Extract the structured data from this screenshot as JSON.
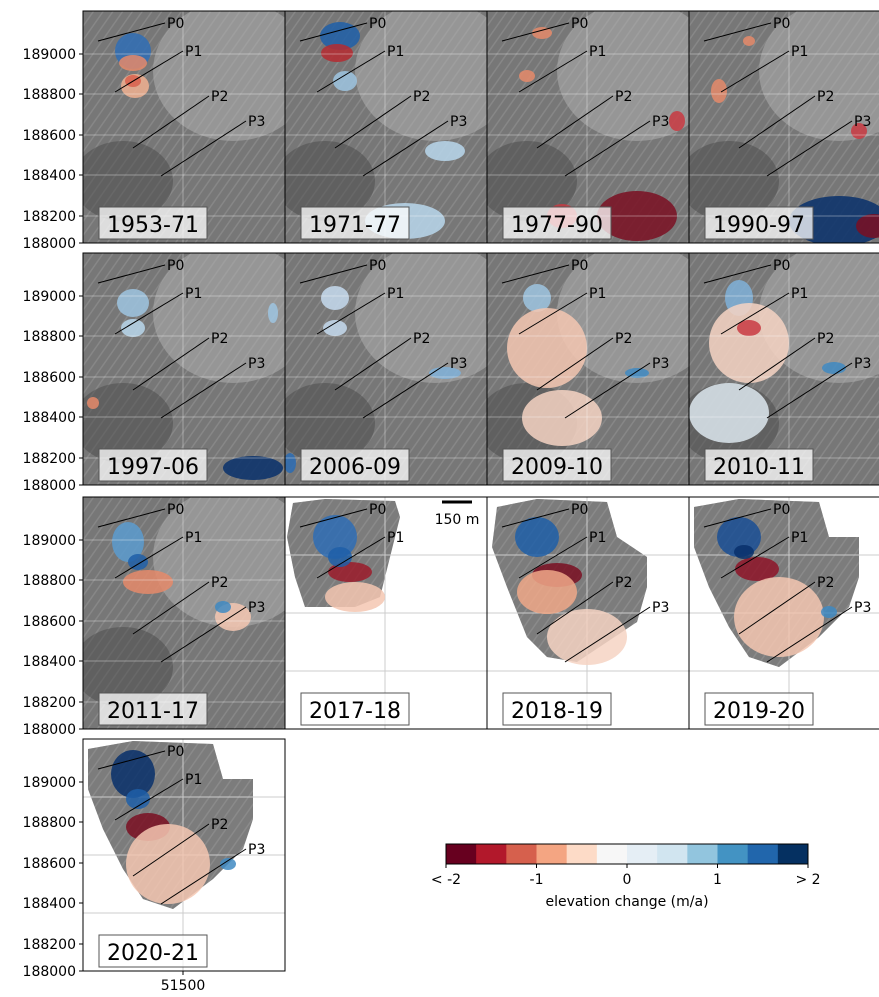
{
  "panels": [
    {
      "label": "1953-71",
      "style": "full",
      "blobs": [
        [
          50,
          40,
          18,
          18,
          "#2f6db5"
        ],
        [
          50,
          52,
          14,
          8,
          "#e58a6a"
        ],
        [
          52,
          75,
          14,
          12,
          "#f0b090"
        ],
        [
          50,
          70,
          8,
          6,
          "#d9604c"
        ]
      ]
    },
    {
      "label": "1971-77",
      "style": "full",
      "blobs": [
        [
          55,
          25,
          20,
          14,
          "#1f5fa8"
        ],
        [
          52,
          42,
          16,
          9,
          "#b52a30"
        ],
        [
          60,
          70,
          12,
          10,
          "#9dc4e0"
        ],
        [
          120,
          210,
          40,
          18,
          "#b9d7ec"
        ],
        [
          160,
          140,
          20,
          10,
          "#b9d7ec"
        ]
      ]
    },
    {
      "label": "1977-90",
      "style": "full",
      "blobs": [
        [
          55,
          22,
          10,
          6,
          "#e58a6a"
        ],
        [
          40,
          65,
          8,
          6,
          "#e58a6a"
        ],
        [
          150,
          205,
          40,
          25,
          "#7a0f22"
        ],
        [
          75,
          205,
          15,
          12,
          "#c93a42"
        ],
        [
          190,
          110,
          8,
          10,
          "#c93a42"
        ]
      ]
    },
    {
      "label": "1990-97",
      "style": "full",
      "blobs": [
        [
          150,
          210,
          50,
          25,
          "#08306b"
        ],
        [
          185,
          215,
          18,
          12,
          "#7a0f22"
        ],
        [
          30,
          80,
          8,
          12,
          "#e58a6a"
        ],
        [
          170,
          120,
          8,
          8,
          "#c93a42"
        ],
        [
          60,
          30,
          6,
          5,
          "#e58a6a"
        ]
      ]
    },
    {
      "label": "1997-06",
      "style": "full",
      "blobs": [
        [
          50,
          50,
          16,
          14,
          "#9dc4e0"
        ],
        [
          50,
          75,
          12,
          9,
          "#b9d7ec"
        ],
        [
          170,
          215,
          30,
          12,
          "#08306b"
        ],
        [
          10,
          150,
          6,
          6,
          "#e58a6a"
        ],
        [
          190,
          60,
          5,
          10,
          "#9dc4e0"
        ]
      ]
    },
    {
      "label": "2006-09",
      "style": "full",
      "blobs": [
        [
          50,
          45,
          14,
          12,
          "#c6dbef"
        ],
        [
          50,
          75,
          12,
          8,
          "#c6dbef"
        ],
        [
          160,
          120,
          16,
          6,
          "#7fb0d8"
        ],
        [
          5,
          210,
          6,
          10,
          "#2a6bb3"
        ]
      ]
    },
    {
      "label": "2009-10",
      "style": "full",
      "blobs": [
        [
          50,
          45,
          14,
          14,
          "#9dc4e0"
        ],
        [
          60,
          95,
          40,
          40,
          "#f4c7b2"
        ],
        [
          75,
          165,
          40,
          28,
          "#f6d4c3"
        ],
        [
          150,
          120,
          12,
          5,
          "#3f8ac2"
        ]
      ]
    },
    {
      "label": "2010-11",
      "style": "full",
      "blobs": [
        [
          50,
          45,
          14,
          18,
          "#7fb0d8"
        ],
        [
          60,
          90,
          40,
          40,
          "#f6d4c3"
        ],
        [
          60,
          75,
          12,
          8,
          "#c93a42"
        ],
        [
          145,
          115,
          12,
          6,
          "#3f8ac2"
        ],
        [
          40,
          160,
          40,
          30,
          "#dde7ef"
        ]
      ]
    },
    {
      "label": "2011-17",
      "style": "full",
      "blobs": [
        [
          45,
          45,
          16,
          20,
          "#5b9bcf"
        ],
        [
          65,
          85,
          25,
          12,
          "#e58a6a"
        ],
        [
          55,
          65,
          10,
          8,
          "#1f5fa8"
        ],
        [
          150,
          120,
          18,
          14,
          "#f4c7b2"
        ],
        [
          140,
          110,
          8,
          6,
          "#3f8ac2"
        ]
      ]
    },
    {
      "label": "2017-18",
      "style": "partial",
      "extent": "small",
      "blobs": [
        [
          50,
          40,
          22,
          22,
          "#2f6db5"
        ],
        [
          65,
          75,
          22,
          10,
          "#9b1b2a"
        ],
        [
          55,
          60,
          12,
          10,
          "#1f5fa8"
        ],
        [
          70,
          100,
          30,
          15,
          "#f4c7b2"
        ]
      ]
    },
    {
      "label": "2018-19",
      "style": "partial",
      "extent": "mid",
      "blobs": [
        [
          50,
          40,
          22,
          20,
          "#1f5fa8"
        ],
        [
          70,
          78,
          25,
          12,
          "#7a0f22"
        ],
        [
          60,
          95,
          30,
          22,
          "#f0a888"
        ],
        [
          100,
          140,
          40,
          28,
          "#f6d4c3"
        ]
      ]
    },
    {
      "label": "2019-20",
      "style": "partial",
      "extent": "large",
      "blobs": [
        [
          50,
          40,
          22,
          20,
          "#1a4f95"
        ],
        [
          68,
          72,
          22,
          12,
          "#8e1428"
        ],
        [
          55,
          55,
          10,
          7,
          "#08306b"
        ],
        [
          90,
          120,
          45,
          40,
          "#f4c7b2"
        ],
        [
          140,
          115,
          8,
          6,
          "#3f8ac2"
        ]
      ]
    },
    {
      "label": "2020-21",
      "style": "partial",
      "extent": "large",
      "blobs": [
        [
          50,
          35,
          22,
          24,
          "#08306b"
        ],
        [
          65,
          88,
          22,
          14,
          "#7a0f22"
        ],
        [
          55,
          60,
          12,
          10,
          "#1f5fa8"
        ],
        [
          85,
          125,
          42,
          40,
          "#f4c7b2"
        ],
        [
          145,
          125,
          8,
          6,
          "#3f8ac2"
        ]
      ]
    }
  ],
  "profiles": [
    {
      "label": "P0",
      "x1": 15,
      "y1": 30,
      "x2": 82,
      "y2": 12
    },
    {
      "label": "P1",
      "x1": 32,
      "y1": 81,
      "x2": 100,
      "y2": 40
    },
    {
      "label": "P2",
      "x1": 50,
      "y1": 137,
      "x2": 126,
      "y2": 85
    },
    {
      "label": "P3",
      "x1": 78,
      "y1": 165,
      "x2": 163,
      "y2": 110
    }
  ],
  "profiles_partial_2017": [
    "P0",
    "P1"
  ],
  "y_ticks": [
    "189000",
    "188800",
    "188600",
    "188400",
    "188200",
    "188000"
  ],
  "x_tick": "51500",
  "scale_bar": "150 m",
  "colorbar": {
    "colors": [
      "#67001f",
      "#b2182b",
      "#d6604d",
      "#f4a582",
      "#fddbc7",
      "#f7f7f7",
      "#e5eef5",
      "#d1e5f0",
      "#92c5de",
      "#4393c3",
      "#2166ac",
      "#053061"
    ],
    "tick_labels": [
      "< -2",
      "-1",
      "0",
      "1",
      "> 2"
    ],
    "label": "elevation change (m/a)"
  }
}
